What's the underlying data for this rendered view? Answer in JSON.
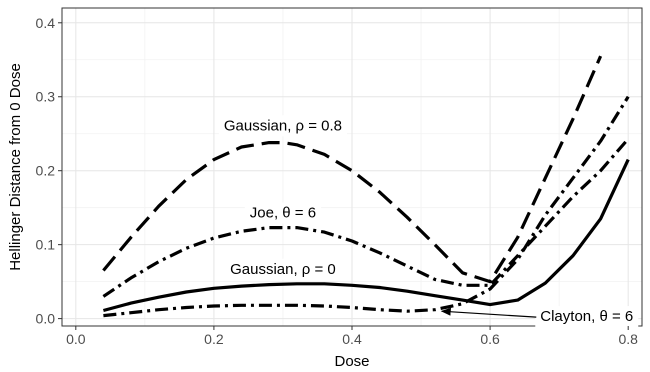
{
  "chart_data": {
    "type": "line",
    "xlabel": "Dose",
    "ylabel": "Hellinger Distance from 0 Dose",
    "xlim": [
      -0.02,
      0.82
    ],
    "ylim": [
      -0.01,
      0.42
    ],
    "xticks": [
      0.0,
      0.2,
      0.4,
      0.6,
      0.8
    ],
    "yticks": [
      0.0,
      0.1,
      0.2,
      0.3,
      0.4
    ],
    "xtick_labels": [
      "0.0",
      "0.2",
      "0.4",
      "0.6",
      "0.8"
    ],
    "ytick_labels": [
      "0.0",
      "0.1",
      "0.2",
      "0.3",
      "0.4"
    ],
    "grid": true,
    "legend": "none (direct labels)",
    "series": [
      {
        "dash": "long-dash",
        "x": [
          0.04,
          0.08,
          0.12,
          0.16,
          0.2,
          0.24,
          0.28,
          0.3,
          0.32,
          0.36,
          0.4,
          0.44,
          0.48,
          0.52,
          0.56,
          0.6,
          0.64,
          0.68,
          0.72,
          0.76
        ],
        "y": [
          0.065,
          0.11,
          0.152,
          0.188,
          0.215,
          0.232,
          0.238,
          0.238,
          0.235,
          0.222,
          0.2,
          0.171,
          0.137,
          0.1,
          0.062,
          0.05,
          0.11,
          0.19,
          0.27,
          0.355
        ]
      },
      {
        "dash": "dash-dot",
        "x": [
          0.04,
          0.08,
          0.12,
          0.16,
          0.2,
          0.24,
          0.28,
          0.32,
          0.36,
          0.4,
          0.44,
          0.48,
          0.52,
          0.56,
          0.6,
          0.64,
          0.68,
          0.72,
          0.76,
          0.8
        ],
        "y": [
          0.03,
          0.055,
          0.077,
          0.095,
          0.109,
          0.118,
          0.123,
          0.123,
          0.117,
          0.105,
          0.089,
          0.071,
          0.053,
          0.045,
          0.045,
          0.085,
          0.125,
          0.165,
          0.2,
          0.243
        ]
      },
      {
        "dash": "solid",
        "x": [
          0.04,
          0.08,
          0.12,
          0.16,
          0.2,
          0.24,
          0.28,
          0.32,
          0.36,
          0.4,
          0.44,
          0.48,
          0.52,
          0.56,
          0.6,
          0.64,
          0.68,
          0.72,
          0.76,
          0.8
        ],
        "y": [
          0.011,
          0.021,
          0.029,
          0.036,
          0.041,
          0.044,
          0.046,
          0.047,
          0.047,
          0.045,
          0.042,
          0.037,
          0.031,
          0.025,
          0.019,
          0.025,
          0.048,
          0.085,
          0.135,
          0.215
        ]
      },
      {
        "dash": "dash-dot",
        "x": [
          0.04,
          0.08,
          0.12,
          0.16,
          0.2,
          0.24,
          0.28,
          0.32,
          0.36,
          0.4,
          0.44,
          0.48,
          0.52,
          0.56,
          0.6,
          0.64,
          0.68,
          0.72,
          0.76,
          0.8
        ],
        "y": [
          0.004,
          0.008,
          0.012,
          0.015,
          0.017,
          0.018,
          0.018,
          0.018,
          0.017,
          0.015,
          0.012,
          0.01,
          0.012,
          0.02,
          0.04,
          0.08,
          0.14,
          0.19,
          0.24,
          0.3
        ]
      }
    ],
    "annotations": [
      {
        "text": "Gaussian, ρ = 0.8",
        "x": 0.3,
        "y": 0.26
      },
      {
        "text": "Joe, θ = 6",
        "x": 0.3,
        "y": 0.142
      },
      {
        "text": "Gaussian, ρ = 0",
        "x": 0.3,
        "y": 0.066
      },
      {
        "text": "Clayton, θ = 6",
        "x": 0.74,
        "y": 0.002,
        "arrow_to": [
          0.53,
          0.01
        ]
      }
    ]
  }
}
